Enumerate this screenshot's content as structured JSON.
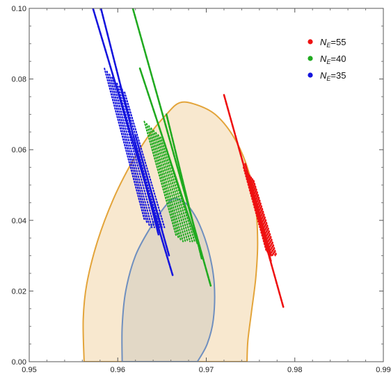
{
  "chart_data": {
    "type": "scatter",
    "title": "",
    "xlabel": "",
    "ylabel": "",
    "xlim": [
      0.95,
      0.99
    ],
    "ylim": [
      0.0,
      0.1
    ],
    "grid": false,
    "legend_position": "top-right",
    "x_ticks": [
      {
        "value": 0.95,
        "label": "0.95"
      },
      {
        "value": 0.96,
        "label": "0.96"
      },
      {
        "value": 0.97,
        "label": "0.97"
      },
      {
        "value": 0.98,
        "label": "0.98"
      },
      {
        "value": 0.99,
        "label": "0.99"
      }
    ],
    "y_ticks": [
      {
        "value": 0.0,
        "label": "0.00"
      },
      {
        "value": 0.02,
        "label": "0.02"
      },
      {
        "value": 0.04,
        "label": "0.04"
      },
      {
        "value": 0.06,
        "label": "0.06"
      },
      {
        "value": 0.08,
        "label": "0.08"
      },
      {
        "value": 0.1,
        "label": "0.10"
      }
    ],
    "contours": [
      {
        "level": "outer",
        "fill": "#f8e8cf",
        "stroke": "#e3a43a",
        "points": [
          [
            0.9562,
            0.0
          ],
          [
            0.9561,
            0.012
          ],
          [
            0.9565,
            0.022
          ],
          [
            0.9577,
            0.034
          ],
          [
            0.9595,
            0.046
          ],
          [
            0.9615,
            0.056
          ],
          [
            0.9635,
            0.064
          ],
          [
            0.9655,
            0.07
          ],
          [
            0.967,
            0.0733
          ],
          [
            0.9688,
            0.0728
          ],
          [
            0.971,
            0.07
          ],
          [
            0.973,
            0.064
          ],
          [
            0.9745,
            0.056
          ],
          [
            0.9755,
            0.046
          ],
          [
            0.9758,
            0.034
          ],
          [
            0.9756,
            0.024
          ],
          [
            0.9751,
            0.014
          ],
          [
            0.9747,
            0.006
          ],
          [
            0.9746,
            0.0
          ]
        ]
      },
      {
        "level": "inner",
        "fill": "#e2d8c6",
        "stroke": "#6f8fbf",
        "points": [
          [
            0.9605,
            0.0
          ],
          [
            0.9605,
            0.01
          ],
          [
            0.9609,
            0.02
          ],
          [
            0.962,
            0.03
          ],
          [
            0.9637,
            0.038
          ],
          [
            0.9652,
            0.0435
          ],
          [
            0.9662,
            0.046
          ],
          [
            0.967,
            0.0458
          ],
          [
            0.968,
            0.044
          ],
          [
            0.9692,
            0.039
          ],
          [
            0.9703,
            0.031
          ],
          [
            0.9709,
            0.022
          ],
          [
            0.9708,
            0.012
          ],
          [
            0.9701,
            0.005
          ],
          [
            0.969,
            0.0
          ]
        ]
      }
    ],
    "series": [
      {
        "name": "N_E=55",
        "legend": {
          "main": "N",
          "sub": "E",
          "suffix": "=55"
        },
        "color": "#ee1111",
        "lines": [
          {
            "x": [
              0.972,
              0.9787
            ],
            "y": [
              0.0755,
              0.0155
            ]
          },
          {
            "x": [
              0.9752,
              0.9773
            ],
            "y": [
              0.0485,
              0.0285
            ]
          },
          {
            "x": [
              0.9744,
              0.9773
            ],
            "y": [
              0.056,
              0.03
            ]
          }
        ],
        "dotted_region": {
          "x_range": [
            0.9742,
            0.9775
          ],
          "y_range": [
            0.03,
            0.055
          ],
          "slope": -9.2
        }
      },
      {
        "name": "N_E=40",
        "legend": {
          "main": "N",
          "sub": "E",
          "suffix": "=40"
        },
        "color": "#20aa20",
        "lines": [
          {
            "x": [
              0.9617,
              0.9705
            ],
            "y": [
              0.1,
              0.0215
            ]
          },
          {
            "x": [
              0.9655,
              0.9695
            ],
            "y": [
              0.07,
              0.029
            ]
          },
          {
            "x": [
              0.9625,
              0.969
            ],
            "y": [
              0.083,
              0.0335
            ]
          }
        ],
        "dotted_region": {
          "x_range": [
            0.963,
            0.969
          ],
          "y_range": [
            0.034,
            0.068
          ],
          "slope": -9.0
        }
      },
      {
        "name": "N_E=35",
        "legend": {
          "main": "N",
          "sub": "E",
          "suffix": "=35"
        },
        "color": "#1515dd",
        "lines": [
          {
            "x": [
              0.9572,
              0.9662
            ],
            "y": [
              0.1,
              0.0245
            ]
          },
          {
            "x": [
              0.9581,
              0.9646
            ],
            "y": [
              0.1,
              0.036
            ]
          },
          {
            "x": [
              0.962,
              0.9658
            ],
            "y": [
              0.064,
              0.03
            ]
          }
        ],
        "dotted_region": {
          "x_range": [
            0.9585,
            0.965
          ],
          "y_range": [
            0.038,
            0.083
          ],
          "slope": -9.5
        }
      }
    ]
  }
}
